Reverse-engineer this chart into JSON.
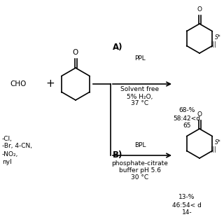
{
  "background_color": "#ffffff",
  "label_A": "A)",
  "label_B": "B)",
  "condition_A_line1": "PPL",
  "condition_A_line2": "Solvent free",
  "condition_A_line3": "5% H₂O,",
  "condition_A_line4": "37 °C",
  "condition_B_line1": "BPL",
  "condition_B_line2": "phosphate-citrate",
  "condition_B_line3": "buffer pH 5.6",
  "condition_B_line4": "30 °C",
  "left_text_line1": "-Cl,",
  "left_text_line2": "-Br, 4-CN,",
  "left_text_line3": "-NO₂,",
  "left_text_line4": "nyl",
  "result_A_line1": "68-%",
  "result_A_line2": "58:42<d",
  "result_A_line3": "65",
  "result_B_line1": "13-%",
  "result_B_line2": "46:54< d",
  "result_B_line3": "14-",
  "cho_text": "CHO",
  "plus_text": "+",
  "stereo_A": "S*",
  "stereo_B": "S*"
}
